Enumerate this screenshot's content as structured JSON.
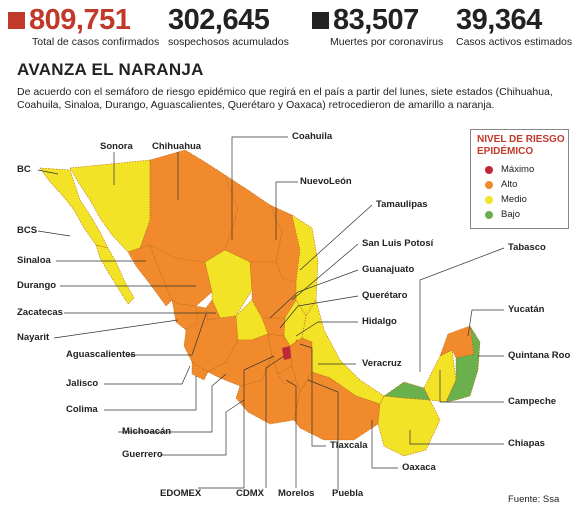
{
  "stats": [
    {
      "value": "809,751",
      "label": "Total de casos confirmados",
      "color": "#c0392b",
      "square": "#c0392b"
    },
    {
      "value": "302,645",
      "label": "sospechosos acumulados",
      "color": "#222222",
      "square": ""
    },
    {
      "value": "83,507",
      "label": "Muertes por coronavirus",
      "color": "#222222",
      "square": "#222222"
    },
    {
      "value": "39,364",
      "label": "Casos activos estimados",
      "color": "#222222",
      "square": ""
    }
  ],
  "title": "AVANZA EL NARANJA",
  "description": "De acuerdo con el semáforo de riesgo epidémico que regirá en el país a partir del lunes, siete estados (Chihuahua, Coahuila, Sinaloa, Durango, Aguascalientes, Querétaro y Oaxaca) retrocedieron de amarillo a naranja.",
  "legend": {
    "title_line1": "NIVEL DE RIESGO",
    "title_line2": "EPIDÉMICO",
    "items": [
      {
        "label": "Máximo",
        "color": "#c0273a"
      },
      {
        "label": "Alto",
        "color": "#f08a2c"
      },
      {
        "label": "Medio",
        "color": "#f2e327"
      },
      {
        "label": "Bajo",
        "color": "#6ab04c"
      }
    ]
  },
  "states": {
    "bc": "BC",
    "bcs": "BCS",
    "sonora": "Sonora",
    "chihuahua": "Chihuahua",
    "coahuila": "Coahuila",
    "nuevoleon": "NuevoLeón",
    "tamaulipas": "Tamaulipas",
    "sanluis": "San Luis Potosí",
    "guanajuato": "Guanajuato",
    "queretaro": "Querétaro",
    "hidalgo": "Hidalgo",
    "veracruz": "Veracruz",
    "tabasco": "Tabasco",
    "yucatan": "Yucatán",
    "quintanaroo": "Quintana Roo",
    "campeche": "Campeche",
    "chiapas": "Chiapas",
    "oaxaca": "Oaxaca",
    "puebla": "Puebla",
    "morelos": "Morelos",
    "cdmx": "CDMX",
    "edomex": "EDOMEX",
    "tlaxcala": "Tlaxcala",
    "guerrero": "Guerrero",
    "michoacan": "Michoacán",
    "colima": "Colima",
    "jalisco": "Jalisco",
    "aguascalientes": "Aguascalientes",
    "nayarit": "Nayarit",
    "zacatecas": "Zacatecas",
    "durango": "Durango",
    "sinaloa": "Sinaloa"
  },
  "source": "Fuente: Ssa"
}
